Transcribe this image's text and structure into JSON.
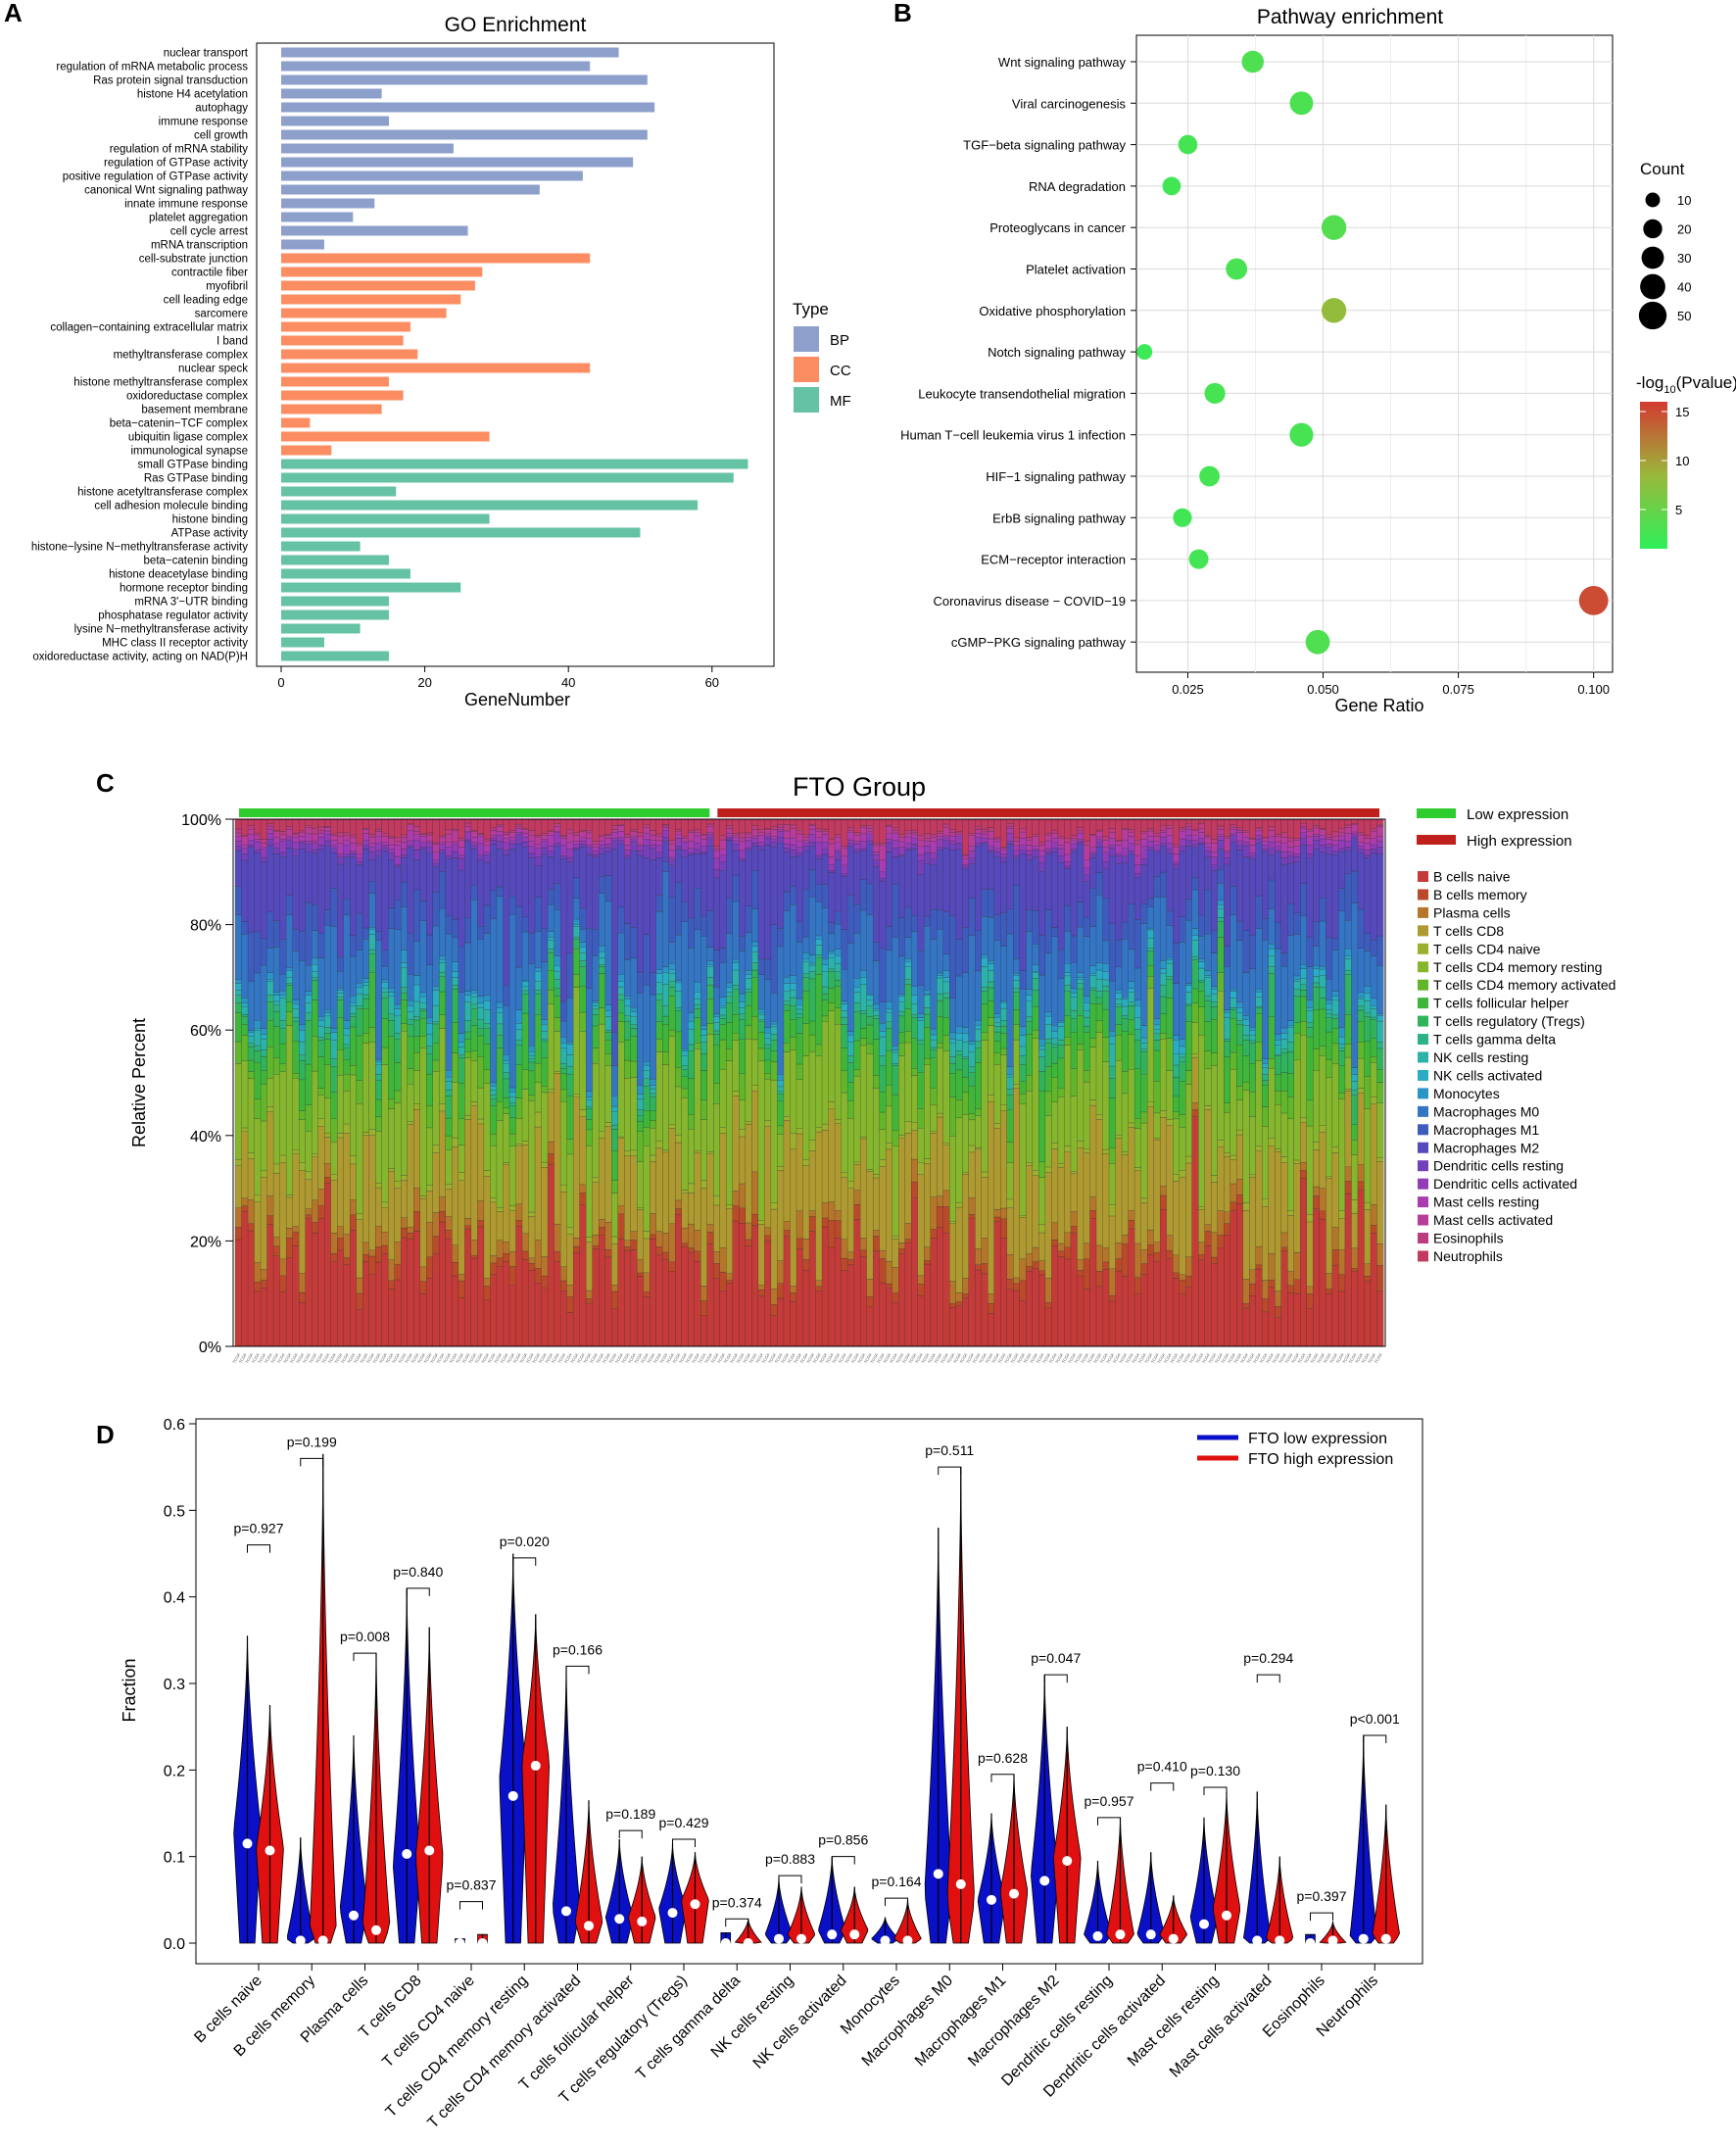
{
  "panels": {
    "A": "A",
    "B": "B",
    "C": "C",
    "D": "D"
  },
  "chart_data": [
    {
      "id": "A",
      "type": "bar",
      "orientation": "horizontal",
      "title": "GO Enrichment",
      "xlabel": "GeneNumber",
      "ylabel": "",
      "xlim": [
        0,
        68
      ],
      "xticks": [
        0,
        20,
        40,
        60
      ],
      "legend_title": "Type",
      "legend": [
        {
          "key": "BP",
          "color": "#8DA0CB"
        },
        {
          "key": "CC",
          "color": "#FC8D62"
        },
        {
          "key": "MF",
          "color": "#66C2A5"
        }
      ],
      "bars": [
        {
          "label": "nuclear transport",
          "value": 47,
          "type": "BP"
        },
        {
          "label": "regulation of mRNA metabolic process",
          "value": 43,
          "type": "BP"
        },
        {
          "label": "Ras protein signal transduction",
          "value": 51,
          "type": "BP"
        },
        {
          "label": "histone H4 acetylation",
          "value": 14,
          "type": "BP"
        },
        {
          "label": "autophagy",
          "value": 52,
          "type": "BP"
        },
        {
          "label": "immune response",
          "value": 15,
          "type": "BP"
        },
        {
          "label": "cell growth",
          "value": 51,
          "type": "BP"
        },
        {
          "label": "regulation of mRNA stability",
          "value": 24,
          "type": "BP"
        },
        {
          "label": "regulation of GTPase activity",
          "value": 49,
          "type": "BP"
        },
        {
          "label": "positive regulation of GTPase activity",
          "value": 42,
          "type": "BP"
        },
        {
          "label": "canonical Wnt signaling pathway",
          "value": 36,
          "type": "BP"
        },
        {
          "label": "innate immune response",
          "value": 13,
          "type": "BP"
        },
        {
          "label": "platelet aggregation",
          "value": 10,
          "type": "BP"
        },
        {
          "label": "cell cycle arrest",
          "value": 26,
          "type": "BP"
        },
        {
          "label": "mRNA transcription",
          "value": 6,
          "type": "BP"
        },
        {
          "label": "cell-substrate junction",
          "value": 43,
          "type": "CC"
        },
        {
          "label": "contractile fiber",
          "value": 28,
          "type": "CC"
        },
        {
          "label": "myofibril",
          "value": 27,
          "type": "CC"
        },
        {
          "label": "cell leading edge",
          "value": 25,
          "type": "CC"
        },
        {
          "label": "sarcomere",
          "value": 23,
          "type": "CC"
        },
        {
          "label": "collagen−containing extracellular matrix",
          "value": 18,
          "type": "CC"
        },
        {
          "label": "I band",
          "value": 17,
          "type": "CC"
        },
        {
          "label": "methyltransferase complex",
          "value": 19,
          "type": "CC"
        },
        {
          "label": "nuclear speck",
          "value": 43,
          "type": "CC"
        },
        {
          "label": "histone methyltransferase complex",
          "value": 15,
          "type": "CC"
        },
        {
          "label": "oxidoreductase complex",
          "value": 17,
          "type": "CC"
        },
        {
          "label": "basement membrane",
          "value": 14,
          "type": "CC"
        },
        {
          "label": "beta−catenin−TCF complex",
          "value": 4,
          "type": "CC"
        },
        {
          "label": "ubiquitin ligase complex",
          "value": 29,
          "type": "CC"
        },
        {
          "label": "immunological synapse",
          "value": 7,
          "type": "CC"
        },
        {
          "label": "small GTPase binding",
          "value": 65,
          "type": "MF"
        },
        {
          "label": "Ras GTPase binding",
          "value": 63,
          "type": "MF"
        },
        {
          "label": "histone acetyltransferase complex",
          "value": 16,
          "type": "MF"
        },
        {
          "label": "cell adhesion molecule binding",
          "value": 58,
          "type": "MF"
        },
        {
          "label": "histone binding",
          "value": 29,
          "type": "MF"
        },
        {
          "label": "ATPase activity",
          "value": 50,
          "type": "MF"
        },
        {
          "label": "histone−lysine N−methyltransferase activity",
          "value": 11,
          "type": "MF"
        },
        {
          "label": "beta−catenin binding",
          "value": 15,
          "type": "MF"
        },
        {
          "label": "histone deacetylase binding",
          "value": 18,
          "type": "MF"
        },
        {
          "label": "hormone receptor binding",
          "value": 25,
          "type": "MF"
        },
        {
          "label": "mRNA 3'−UTR binding",
          "value": 15,
          "type": "MF"
        },
        {
          "label": "phosphatase regulator activity",
          "value": 15,
          "type": "MF"
        },
        {
          "label": "lysine N−methyltransferase activity",
          "value": 11,
          "type": "MF"
        },
        {
          "label": "MHC class II receptor activity",
          "value": 6,
          "type": "MF"
        },
        {
          "label": "oxidoreductase activity, acting on NAD(P)H",
          "value": 15,
          "type": "MF"
        }
      ]
    },
    {
      "id": "B",
      "type": "scatter",
      "title": "Pathway enrichment",
      "xlabel": "Gene Ratio",
      "ylabel": "",
      "xlim": [
        0.0155,
        0.1035
      ],
      "xticks": [
        0.025,
        0.05,
        0.075,
        0.1
      ],
      "xtick_labels": [
        "0.025",
        "0.050",
        "0.075",
        "0.100"
      ],
      "grid": true,
      "size_legend_title": "Count",
      "size_legend": [
        10,
        20,
        30,
        40,
        50
      ],
      "color_legend_title": "-log",
      "color_legend_sub": "10",
      "color_legend_tail": "(Pvalue)",
      "color_ticks": [
        15,
        10,
        5
      ],
      "color_range": [
        1,
        16
      ],
      "points": [
        {
          "label": "Wnt signaling pathway",
          "x": 0.037,
          "count": 26,
          "logp": 3.2
        },
        {
          "label": "Viral carcinogenesis",
          "x": 0.046,
          "count": 30,
          "logp": 3.0
        },
        {
          "label": "TGF−beta signaling pathway",
          "x": 0.025,
          "count": 18,
          "logp": 2.6
        },
        {
          "label": "RNA degradation",
          "x": 0.022,
          "count": 16,
          "logp": 2.4
        },
        {
          "label": "Proteoglycans in cancer",
          "x": 0.052,
          "count": 35,
          "logp": 3.6
        },
        {
          "label": "Platelet activation",
          "x": 0.034,
          "count": 24,
          "logp": 2.9
        },
        {
          "label": "Oxidative phosphorylation",
          "x": 0.052,
          "count": 35,
          "logp": 8.0
        },
        {
          "label": "Notch signaling pathway",
          "x": 0.017,
          "count": 10,
          "logp": 2.0
        },
        {
          "label": "Leukocyte transendothelial migration",
          "x": 0.03,
          "count": 22,
          "logp": 2.7
        },
        {
          "label": "Human T−cell leukemia virus 1 infection",
          "x": 0.046,
          "count": 31,
          "logp": 2.8
        },
        {
          "label": "HIF−1 signaling pathway",
          "x": 0.029,
          "count": 21,
          "logp": 2.6
        },
        {
          "label": "ErbB signaling pathway",
          "x": 0.024,
          "count": 17,
          "logp": 2.3
        },
        {
          "label": "ECM−receptor interaction",
          "x": 0.027,
          "count": 19,
          "logp": 2.5
        },
        {
          "label": "Coronavirus disease − COVID−19",
          "x": 0.1,
          "count": 52,
          "logp": 15.0
        },
        {
          "label": "cGMP−PKG signaling pathway",
          "x": 0.049,
          "count": 33,
          "logp": 3.3
        }
      ]
    },
    {
      "id": "C",
      "type": "bar",
      "stacked": true,
      "title": "FTO Group",
      "ylabel": "Relative Percent",
      "ylim": [
        0,
        100
      ],
      "yticks": [
        "0%",
        "20%",
        "40%",
        "60%",
        "80%",
        "100%"
      ],
      "n_samples": 180,
      "n_low": 75,
      "group_legend": [
        {
          "label": "Low expression",
          "color": "#2ECC2E"
        },
        {
          "label": "High expression",
          "color": "#C0201C"
        }
      ],
      "cell_types": [
        {
          "name": "B cells naive",
          "color": "#C43B3A"
        },
        {
          "name": "B cells memory",
          "color": "#BA4A2A"
        },
        {
          "name": "Plasma cells",
          "color": "#B5762C"
        },
        {
          "name": "T cells CD8",
          "color": "#AE9A30"
        },
        {
          "name": "T cells CD4 naive",
          "color": "#9CB02F"
        },
        {
          "name": "T cells CD4 memory resting",
          "color": "#86B62D"
        },
        {
          "name": "T cells CD4 memory activated",
          "color": "#62B62C"
        },
        {
          "name": "T cells follicular helper",
          "color": "#3FB63A"
        },
        {
          "name": "T cells regulatory (Tregs)",
          "color": "#30B35C"
        },
        {
          "name": "T cells gamma delta",
          "color": "#2DB283"
        },
        {
          "name": "NK cells resting",
          "color": "#2CB2A8"
        },
        {
          "name": "NK cells activated",
          "color": "#2AACC4"
        },
        {
          "name": "Monocytes",
          "color": "#2C95C8"
        },
        {
          "name": "Macrophages M0",
          "color": "#3476C4"
        },
        {
          "name": "Macrophages M1",
          "color": "#3E5CBE"
        },
        {
          "name": "Macrophages M2",
          "color": "#5649BC"
        },
        {
          "name": "Dendritic cells resting",
          "color": "#7440BA"
        },
        {
          "name": "Dendritic cells activated",
          "color": "#923CB8"
        },
        {
          "name": "Mast cells resting",
          "color": "#AA3CB0"
        },
        {
          "name": "Mast cells activated",
          "color": "#B83C9A"
        },
        {
          "name": "Eosinophils",
          "color": "#BC3C80"
        },
        {
          "name": "Neutrophils",
          "color": "#C23A60"
        }
      ],
      "base_fractions": [
        17,
        2,
        3,
        14,
        1,
        14,
        3,
        5,
        3,
        1,
        2,
        1,
        1,
        8,
        6,
        12,
        1,
        1,
        1,
        1,
        0.5,
        2.5
      ]
    },
    {
      "id": "D",
      "type": "violin",
      "xlabel": "",
      "ylabel": "Fraction",
      "ylim": [
        0,
        0.61
      ],
      "yticks": [
        "0.0",
        "0.1",
        "0.2",
        "0.3",
        "0.4",
        "0.5",
        "0.6"
      ],
      "legend": [
        {
          "label": "FTO low expression",
          "color": "#0A10C8"
        },
        {
          "label": "FTO high expression",
          "color": "#E01010"
        }
      ],
      "groups": [
        {
          "label": "B cells naive",
          "p": "p=0.927",
          "low": {
            "max": 0.355,
            "median": 0.115,
            "peak": 0.13,
            "wmax": 0.46
          },
          "high": {
            "max": 0.275,
            "median": 0.107,
            "peak": 0.11
          }
        },
        {
          "label": "B cells memory",
          "p": "p=0.199",
          "low": {
            "max": 0.122,
            "median": 0.003,
            "peak": 0.005,
            "wmax": 0.56
          },
          "high": {
            "max": 0.565,
            "median": 0.003,
            "peak": 0.005
          }
        },
        {
          "label": "Plasma cells",
          "p": "p=0.008",
          "low": {
            "max": 0.24,
            "median": 0.032,
            "peak": 0.04,
            "wmax": 0.335
          },
          "high": {
            "max": 0.335,
            "median": 0.015,
            "peak": 0.02
          }
        },
        {
          "label": "T cells CD8",
          "p": "p=0.840",
          "low": {
            "max": 0.41,
            "median": 0.103,
            "peak": 0.09,
            "wmax": 0.41
          },
          "high": {
            "max": 0.365,
            "median": 0.107,
            "peak": 0.1
          }
        },
        {
          "label": "T cells CD4 naive",
          "p": "p=0.837",
          "low": {
            "max": 0.005,
            "median": 0.0,
            "peak": 0.0,
            "wmax": 0.048
          },
          "high": {
            "max": 0.01,
            "median": 0.0,
            "peak": 0.0
          }
        },
        {
          "label": "T cells CD4 memory resting",
          "p": "p=0.020",
          "low": {
            "max": 0.45,
            "median": 0.17,
            "peak": 0.19,
            "wmax": 0.445
          },
          "high": {
            "max": 0.38,
            "median": 0.205,
            "peak": 0.21
          }
        },
        {
          "label": "T cells CD4 memory activated",
          "p": "p=0.166",
          "low": {
            "max": 0.32,
            "median": 0.037,
            "peak": 0.04,
            "wmax": 0.32
          },
          "high": {
            "max": 0.165,
            "median": 0.02,
            "peak": 0.025
          }
        },
        {
          "label": "T cells follicular helper",
          "p": "p=0.189",
          "low": {
            "max": 0.12,
            "median": 0.028,
            "peak": 0.03,
            "wmax": 0.13
          },
          "high": {
            "max": 0.1,
            "median": 0.025,
            "peak": 0.03
          }
        },
        {
          "label": "T cells regulatory (Tregs)",
          "p": "p=0.429",
          "low": {
            "max": 0.115,
            "median": 0.035,
            "peak": 0.04,
            "wmax": 0.12
          },
          "high": {
            "max": 0.105,
            "median": 0.045,
            "peak": 0.05
          }
        },
        {
          "label": "T cells gamma delta",
          "p": "p=0.374",
          "low": {
            "max": 0.012,
            "median": 0.0,
            "peak": 0.0,
            "wmax": 0.028
          },
          "high": {
            "max": 0.028,
            "median": 0.0,
            "peak": 0.0
          }
        },
        {
          "label": "NK cells resting",
          "p": "p=0.883",
          "low": {
            "max": 0.075,
            "median": 0.005,
            "peak": 0.01,
            "wmax": 0.078
          },
          "high": {
            "max": 0.065,
            "median": 0.005,
            "peak": 0.01
          }
        },
        {
          "label": "NK cells activated",
          "p": "p=0.856",
          "low": {
            "max": 0.1,
            "median": 0.01,
            "peak": 0.015,
            "wmax": 0.1
          },
          "high": {
            "max": 0.065,
            "median": 0.01,
            "peak": 0.015
          }
        },
        {
          "label": "Monocytes",
          "p": "p=0.164",
          "low": {
            "max": 0.03,
            "median": 0.003,
            "peak": 0.005,
            "wmax": 0.052
          },
          "high": {
            "max": 0.05,
            "median": 0.003,
            "peak": 0.005
          }
        },
        {
          "label": "Macrophages M0",
          "p": "p=0.511",
          "low": {
            "max": 0.48,
            "median": 0.08,
            "peak": 0.06,
            "wmax": 0.55
          },
          "high": {
            "max": 0.55,
            "median": 0.068,
            "peak": 0.05
          }
        },
        {
          "label": "Macrophages M1",
          "p": "p=0.628",
          "low": {
            "max": 0.15,
            "median": 0.05,
            "peak": 0.05,
            "wmax": 0.195
          },
          "high": {
            "max": 0.195,
            "median": 0.057,
            "peak": 0.06
          }
        },
        {
          "label": "Macrophages M2",
          "p": "p=0.047",
          "low": {
            "max": 0.31,
            "median": 0.072,
            "peak": 0.08,
            "wmax": 0.31
          },
          "high": {
            "max": 0.25,
            "median": 0.095,
            "peak": 0.1
          }
        },
        {
          "label": "Dendritic cells resting",
          "p": "p=0.957",
          "low": {
            "max": 0.095,
            "median": 0.008,
            "peak": 0.01,
            "wmax": 0.145
          },
          "high": {
            "max": 0.145,
            "median": 0.01,
            "peak": 0.01
          }
        },
        {
          "label": "Dendritic cells activated",
          "p": "p=0.410",
          "low": {
            "max": 0.105,
            "median": 0.01,
            "peak": 0.01,
            "wmax": 0.185
          },
          "high": {
            "max": 0.055,
            "median": 0.005,
            "peak": 0.01
          }
        },
        {
          "label": "Mast cells resting",
          "p": "p=0.130",
          "low": {
            "max": 0.145,
            "median": 0.022,
            "peak": 0.03,
            "wmax": 0.18
          },
          "high": {
            "max": 0.175,
            "median": 0.032,
            "peak": 0.04
          }
        },
        {
          "label": "Mast cells activated",
          "p": "p=0.294",
          "low": {
            "max": 0.175,
            "median": 0.003,
            "peak": 0.005,
            "wmax": 0.31
          },
          "high": {
            "max": 0.1,
            "median": 0.003,
            "peak": 0.005
          }
        },
        {
          "label": "Eosinophils",
          "p": "p=0.397",
          "low": {
            "max": 0.01,
            "median": 0.0,
            "peak": 0.0,
            "wmax": 0.035
          },
          "high": {
            "max": 0.025,
            "median": 0.003,
            "peak": 0.0
          }
        },
        {
          "label": "Neutrophils",
          "p": "p<0.001",
          "low": {
            "max": 0.24,
            "median": 0.005,
            "peak": 0.005,
            "wmax": 0.24
          },
          "high": {
            "max": 0.16,
            "median": 0.005,
            "peak": 0.01
          }
        }
      ]
    }
  ]
}
